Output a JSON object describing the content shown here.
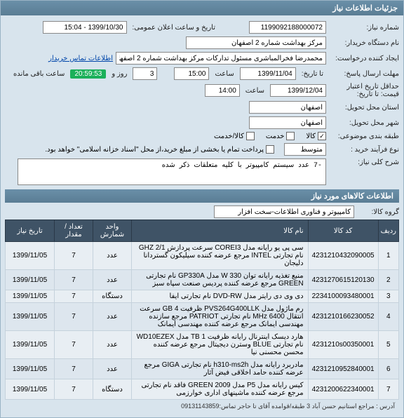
{
  "header": {
    "title": "جزئیات اطلاعات نیاز"
  },
  "form": {
    "need_no_label": "شماره نیاز:",
    "need_no": "1199092188000072",
    "announce_label": "تاریخ و ساعت اعلان عمومی:",
    "announce": "1399/10/30 - 15:04",
    "org_label": "نام دستگاه خریدار:",
    "org": "مرکز بهداشت شماره 2 اصفهان",
    "creator_label": "ایجاد کننده درخواست:",
    "creator": "محمدرضا فخرالمباشری مسئول تدارکات مرکز بهداشت شماره 2 اصفهان",
    "contact_link": "اطلاعات تماس خریدار",
    "deadline_label": "مهلت ارسال پاسخ:",
    "until_label": "تا تاریخ:",
    "deadline_date": "1399/11/04",
    "hour_label": "ساعت",
    "deadline_time": "15:00",
    "days_value": "3",
    "days_label": "روز و",
    "countdown": "20:59:53",
    "remain_label": "ساعت باقی مانده",
    "validity_label": "حداقل تاریخ اعتبار قیمت: تا تاریخ:",
    "validity_date": "1399/12/04",
    "validity_time": "14:00",
    "province_label": "استان محل تحویل:",
    "province": "اصفهان",
    "city_label": "شهر محل تحویل:",
    "city": "اصفهان",
    "grouping_label": "طبقه بندی موضوعی:",
    "cb_goods": "کالا",
    "cb_service": "خدمت",
    "cb_goods_service": "کالا/خدمت",
    "process_label": "نوع فرآیند خرید :",
    "process": "متوسط",
    "pay_note": "پرداخت تمام یا بخشی از مبلغ خرید،از محل \"اسناد خزانه اسلامی\" خواهد بود.",
    "desc_label": "شرح کلی نیاز:",
    "desc": "-7 عدد سیستم کامپیوتر با کلیه متعلقات ذکر شده"
  },
  "items_section": {
    "title": "اطلاعات کالاهای مورد نیاز"
  },
  "group": {
    "label": "گروه کالا:",
    "value": "کامپیوتر و فناوری اطلاعات-سخت افزار"
  },
  "table": {
    "cols": {
      "idx": "ردیف",
      "code": "کد کالا",
      "name": "نام کالا",
      "unit": "واحد شمارش",
      "qty": "تعداد / مقدار",
      "date": "تاریخ نیاز"
    },
    "rows": [
      {
        "idx": "1",
        "code": "4231210432090005",
        "name": "سی پی یو رایانه مدل COREI3 سرعت پردازش GHZ 2/1 نام تجارتی INTEL مرجع عرضه کننده سیلیکون گستردانا دلیجان",
        "unit": "عدد",
        "qty": "7",
        "date": "1399/11/05"
      },
      {
        "idx": "2",
        "code": "4231270615120130",
        "name": "منبع تغذیه رایانه توان W 330 مدل GP330A نام تجارتی GREEN مرجع عرضه کننده پردیس صنعت سپاه سبز",
        "unit": "عدد",
        "qty": "7",
        "date": "1399/11/05"
      },
      {
        "idx": "3",
        "code": "2234100093480001",
        "name": "دی وی دی رایتر مدل DVD-RW نام تجارتی ایفا",
        "unit": "دستگاه",
        "qty": "7",
        "date": "1399/11/05"
      },
      {
        "idx": "4",
        "code": "4231210166230052",
        "name": "رم ماژول مدل PVS264G400LLK ظرفیت GB 4 سرعت انتقال MHz 6400 نام تجارتی PATRIOT مرجع سازنده مهندسی ایمانک مرجع عرضه کننده مهندسی ایمانک",
        "unit": "عدد",
        "qty": "7",
        "date": "1399/11/05"
      },
      {
        "idx": "5",
        "code": "4231210s00350001",
        "name": "هارد دیسک اینترنال رایانه ظرفیت TB 1 مدل WD10EZEX نام تجارتی BLUE وسترن دیجیتال مرجع عرضه کننده محسن محسنی نیا",
        "unit": "عدد",
        "qty": "7",
        "date": "1399/11/05"
      },
      {
        "idx": "6",
        "code": "4231210952840001",
        "name": "مادربرد رایانه مدل h310-ms2h نام تجارتی GIGA مرجع عرضه کننده حامد اخلاقی فیض آثار",
        "unit": "عدد",
        "qty": "7",
        "date": "1399/11/05"
      },
      {
        "idx": "7",
        "code": "4231200622340001",
        "name": "کیس رایانه مدل P5 مدل GREEN 2009 فاقد نام تجارتی مرجع عرضه کننده ماشینهای اداری خوارزمی",
        "unit": "دستگاه",
        "qty": "7",
        "date": "1399/11/05"
      }
    ]
  },
  "footer": {
    "note": "آدرس : مراجع استانیم حسن آباد 3 طبقه/قوامده آقای تا حاجر تماس:09131143859"
  }
}
